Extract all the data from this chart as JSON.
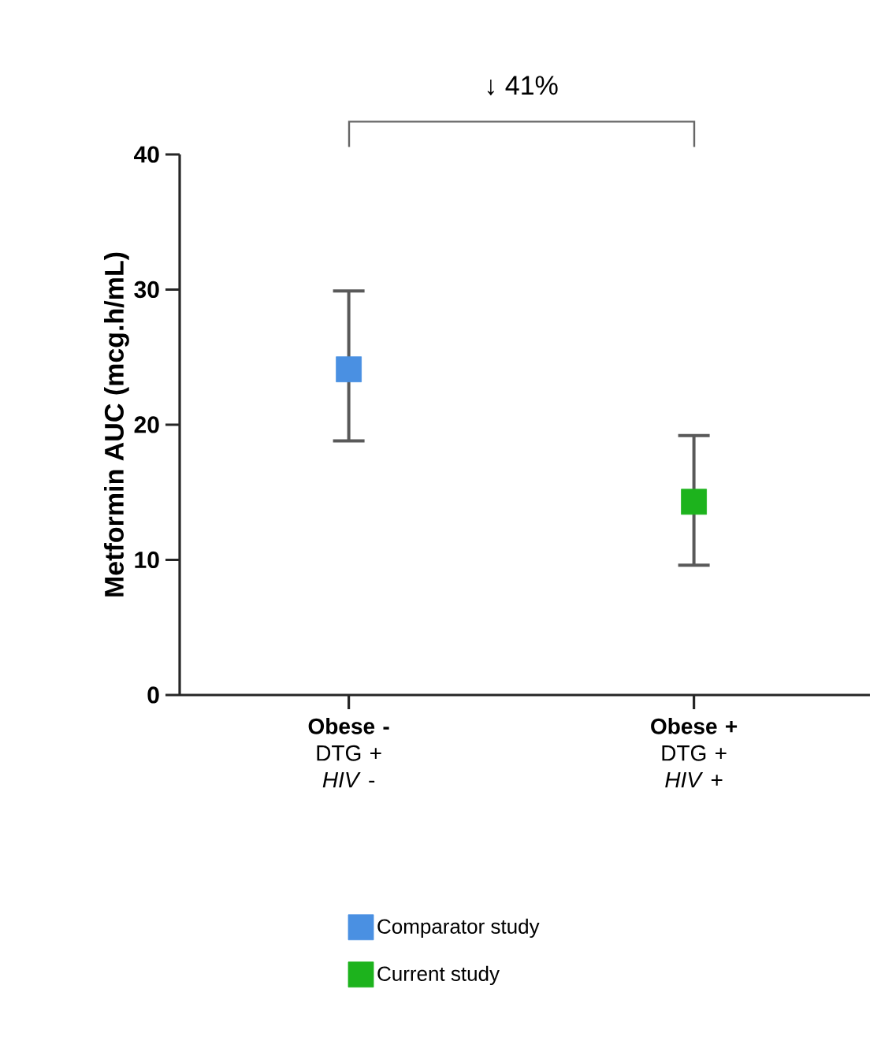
{
  "chart_data": {
    "type": "scatter",
    "ylabel": "Metformin AUC (mcg.h/mL)",
    "categories": [
      "**Obese -**\nDTG +\n*HIV* -",
      "**Obese +**\nDTG +\n*HIV* +"
    ],
    "series": [
      {
        "name": "Comparator study",
        "color": "#4a90e2",
        "values": [
          24.1,
          null
        ],
        "errors": [
          [
            18.8,
            29.9
          ],
          null
        ]
      },
      {
        "name": "Current study",
        "color": "#1db31d",
        "values": [
          null,
          14.3
        ],
        "errors": [
          null,
          [
            9.6,
            19.2
          ]
        ]
      }
    ],
    "ylim": [
      0,
      40
    ],
    "yticks": [
      0,
      10,
      20,
      30,
      40
    ],
    "marker": "square",
    "legend": "bottom",
    "grid": false,
    "annotations": [
      "↓ 41%"
    ]
  }
}
